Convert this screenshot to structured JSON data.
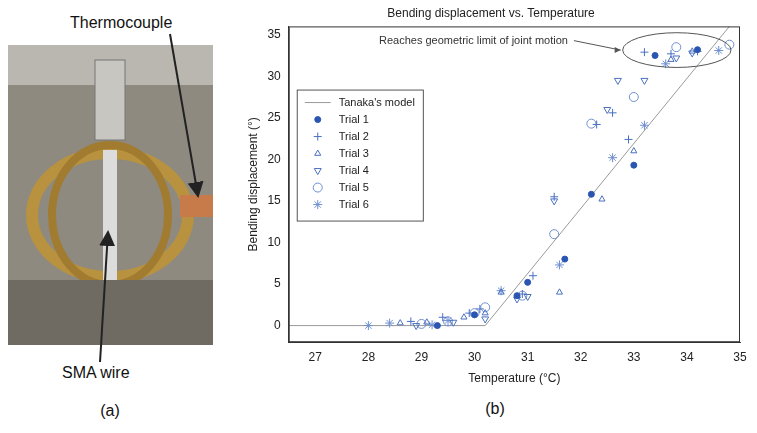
{
  "chart_data": {
    "type": "scatter",
    "title": "Bending displacement vs. Temperature",
    "x_label": "Temperature (°C)",
    "y_label": "Bending displacement (°)",
    "xlim": [
      26.5,
      35
    ],
    "xticks": [
      27,
      28,
      29,
      30,
      31,
      32,
      33,
      34,
      35
    ],
    "ylim": [
      -2,
      36
    ],
    "yticks": [
      0,
      5,
      10,
      15,
      20,
      25,
      30,
      35
    ],
    "grid": false,
    "legend": "left",
    "annotations": [
      "Reaches geometric limit of joint motion"
    ],
    "series": [
      {
        "name": "Tanaka's model",
        "type": "line",
        "color": "#9a9a9a",
        "line_style": "solid",
        "x": [
          26.5,
          30.2,
          34.8
        ],
        "values": [
          0,
          0,
          36
        ]
      },
      {
        "name": "Trial 1",
        "type": "scatter",
        "marker": "circle",
        "color": "#2a55b0",
        "x": [
          29.3,
          30,
          30.8,
          31,
          31.7,
          32.2,
          33,
          33.4,
          34.2
        ],
        "values": [
          0,
          1.3,
          3.6,
          5.2,
          8,
          15.8,
          19.3,
          32.5,
          33.2
        ]
      },
      {
        "name": "Trial 2",
        "type": "scatter",
        "marker": "plus",
        "color": "#4a70c0",
        "x": [
          28.8,
          29.4,
          29.9,
          30.1,
          30.9,
          31.1,
          31.5,
          32.3,
          32.6,
          32.9,
          33.2,
          33.7,
          34.2
        ],
        "values": [
          0.5,
          1,
          1.5,
          2,
          3.8,
          6,
          15.5,
          24.2,
          25.6,
          22.4,
          32.9,
          32.7,
          33
        ]
      },
      {
        "name": "Trial 3",
        "type": "scatter",
        "marker": "triangle",
        "color": "#4a70c0",
        "x": [
          28.6,
          29.1,
          29.8,
          30.2,
          30.5,
          31.6,
          32.4,
          33,
          33.7,
          34.1
        ],
        "values": [
          0.3,
          0.4,
          1,
          1.5,
          4,
          4,
          15.2,
          21,
          32,
          33
        ]
      },
      {
        "name": "Trial 4",
        "type": "scatter",
        "marker": "triangle_down",
        "color": "#4a70c0",
        "x": [
          28.9,
          29.6,
          30.2,
          30.8,
          31,
          31.5,
          32.5,
          32.7,
          33.2,
          33.8,
          34.1
        ],
        "values": [
          0,
          0.4,
          0.8,
          3.2,
          3.5,
          15,
          26,
          29.5,
          29.5,
          32.2,
          32.8
        ]
      },
      {
        "name": "Trial 5",
        "type": "scatter",
        "marker": "open_circle",
        "color": "#6f8fd0",
        "x": [
          29,
          29.5,
          30,
          30.2,
          30.9,
          31.5,
          32.2,
          33,
          33.8,
          34.8
        ],
        "values": [
          0.2,
          0.5,
          1.5,
          2.2,
          3.6,
          11,
          24.3,
          27.5,
          33.5,
          33.8
        ]
      },
      {
        "name": "Trial 6",
        "type": "scatter",
        "marker": "star",
        "color": "#6f8fd0",
        "x": [
          28,
          28.4,
          29.2,
          29.5,
          30.5,
          31.6,
          32.6,
          33.2,
          33.6,
          34.6
        ],
        "values": [
          0,
          0.3,
          0.1,
          0.6,
          4.2,
          7.3,
          20.2,
          24.1,
          31.5,
          33.1
        ]
      }
    ]
  },
  "panels": [
    {
      "caption": "(a)",
      "labels": [
        "Thermocouple",
        "SMA wire"
      ]
    },
    {
      "caption": "(b)"
    }
  ]
}
